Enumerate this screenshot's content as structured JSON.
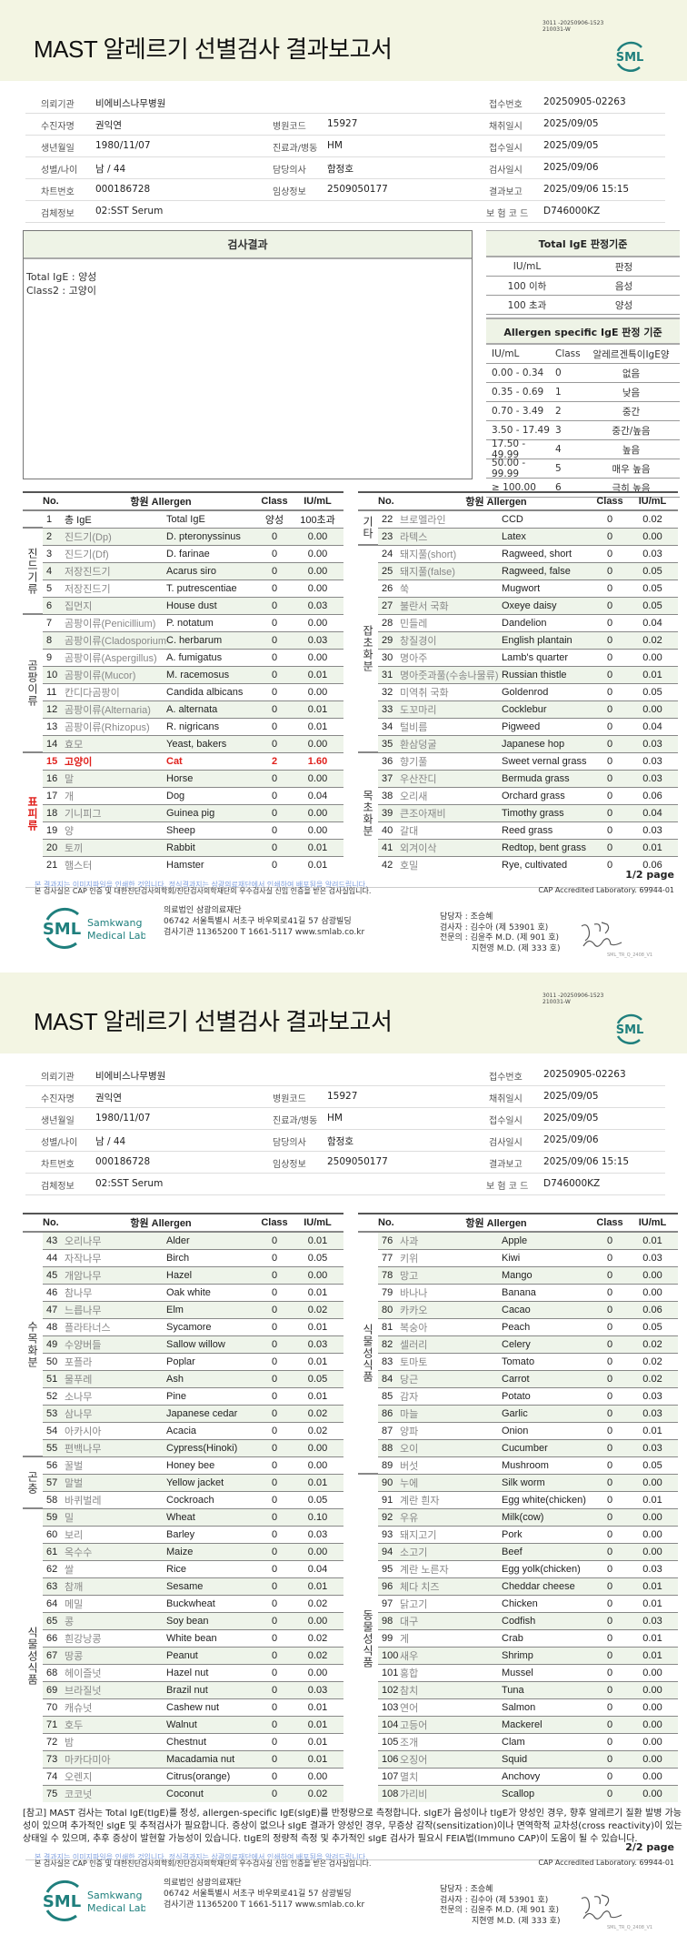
{
  "header": {
    "title": "MAST 알레르기 선별검사 결과보고서",
    "doc_code_1": "3011 -20250906-1523",
    "doc_code_2": "210031-W",
    "logo_text": "SML"
  },
  "info": {
    "institution_label": "의뢰기관",
    "institution": "비에비스나무병원",
    "receipt_no_label": "접수번호",
    "receipt_no": "20250905-02263",
    "patient_label": "수진자명",
    "patient": "권익연",
    "hospital_code_label": "병원코드",
    "hospital_code": "15927",
    "collected_label": "채취일시",
    "collected": "2025/09/05",
    "birth_label": "생년월일",
    "birth": "1980/11/07",
    "dept_label": "진료과/병동",
    "dept": "HM",
    "received_label": "접수일시",
    "received": "2025/09/05",
    "sex_age_label": "성별/나이",
    "sex_age": "남 / 44",
    "doctor_label": "담당의사",
    "doctor": "함정호",
    "tested_label": "검사일시",
    "tested": "2025/09/06",
    "chart_label": "차트번호",
    "chart": "000186728",
    "clinical_label": "임상정보",
    "clinical": "2509050177",
    "reported_label": "결과보고",
    "reported": "2025/09/06 15:15",
    "specimen_label": "검체정보",
    "specimen": "02:SST Serum",
    "insurance_label": "보 험 코 드",
    "insurance": "D746000KZ"
  },
  "result": {
    "title": "검사결과",
    "line1": "Total IgE : 양성",
    "line2": "Class2 : 고양이"
  },
  "total_criteria": {
    "title": "Total IgE 판정기준",
    "headers": [
      "IU/mL",
      "판정"
    ],
    "rows": [
      [
        "100 이하",
        "음성"
      ],
      [
        "100 초과",
        "양성"
      ]
    ]
  },
  "specific_criteria": {
    "title": "Allergen specific IgE 판정 기준",
    "headers": [
      "IU/mL",
      "Class",
      "알레르겐특이IgE양"
    ],
    "rows": [
      [
        "0.00 - 0.34",
        "0",
        "없음"
      ],
      [
        "0.35 - 0.69",
        "1",
        "낮음"
      ],
      [
        "0.70 - 3.49",
        "2",
        "중간"
      ],
      [
        "3.50 - 17.49",
        "3",
        "중간/높음"
      ],
      [
        "17.50 - 49.99",
        "4",
        "높음"
      ],
      [
        "50.00 - 99.99",
        "5",
        "매우 높음"
      ],
      [
        "≥ 100.00",
        "6",
        "극히 높음"
      ]
    ]
  },
  "table_headers": {
    "no": "No.",
    "allergen": "항원 Allergen",
    "class": "Class",
    "iu": "IU/mL"
  },
  "tables": {
    "p1_left": [
      {
        "group": "",
        "rows": [
          [
            "1",
            "총 IgE",
            "Total IgE",
            "양성",
            "100초과"
          ]
        ]
      },
      {
        "group": "진드기류",
        "rows": [
          [
            "2",
            "진드기(Dp)",
            "D. pteronyssinus",
            "0",
            "0.00"
          ],
          [
            "3",
            "진드기(Df)",
            "D. farinae",
            "0",
            "0.00"
          ],
          [
            "4",
            "저장진드기",
            "Acarus siro",
            "0",
            "0.00"
          ],
          [
            "5",
            "저장진드기",
            "T. putrescentiae",
            "0",
            "0.00"
          ],
          [
            "6",
            "집먼지",
            "House dust",
            "0",
            "0.03"
          ]
        ]
      },
      {
        "group": "곰팡이류",
        "rows": [
          [
            "7",
            "곰팡이류(Penicillium)",
            "P. notatum",
            "0",
            "0.00"
          ],
          [
            "8",
            "곰팡이류(Cladosporium)",
            "C. herbarum",
            "0",
            "0.03"
          ],
          [
            "9",
            "곰팡이류(Aspergillus)",
            "A. fumigatus",
            "0",
            "0.00"
          ],
          [
            "10",
            "곰팡이류(Mucor)",
            "M. racemosus",
            "0",
            "0.01"
          ],
          [
            "11",
            "칸디다곰팡이",
            "Candida albicans",
            "0",
            "0.00"
          ],
          [
            "12",
            "곰팡이류(Alternaria)",
            "A. alternata",
            "0",
            "0.01"
          ],
          [
            "13",
            "곰팡이류(Rhizopus)",
            "R. nigricans",
            "0",
            "0.01"
          ],
          [
            "14",
            "효모",
            "Yeast, bakers",
            "0",
            "0.00"
          ]
        ]
      },
      {
        "group": "표피류",
        "rows": [
          [
            "15",
            "고양이",
            "Cat",
            "2",
            "1.60"
          ],
          [
            "16",
            "말",
            "Horse",
            "0",
            "0.00"
          ],
          [
            "17",
            "개",
            "Dog",
            "0",
            "0.04"
          ],
          [
            "18",
            "기니피그",
            "Guinea pig",
            "0",
            "0.00"
          ],
          [
            "19",
            "양",
            "Sheep",
            "0",
            "0.00"
          ],
          [
            "20",
            "토끼",
            "Rabbit",
            "0",
            "0.01"
          ],
          [
            "21",
            "햄스터",
            "Hamster",
            "0",
            "0.01"
          ]
        ]
      }
    ],
    "p1_right": [
      {
        "group": "기타",
        "rows": [
          [
            "22",
            "브로멜라인",
            "CCD",
            "0",
            "0.02"
          ],
          [
            "23",
            "라텍스",
            "Latex",
            "0",
            "0.00"
          ]
        ]
      },
      {
        "group": "잡초화분",
        "rows": [
          [
            "24",
            "돼지풀(short)",
            "Ragweed, short",
            "0",
            "0.03"
          ],
          [
            "25",
            "돼지풀(false)",
            "Ragweed, false",
            "0",
            "0.05"
          ],
          [
            "26",
            "쑥",
            "Mugwort",
            "0",
            "0.05"
          ],
          [
            "27",
            "불란서 국화",
            "Oxeye daisy",
            "0",
            "0.05"
          ],
          [
            "28",
            "민들레",
            "Dandelion",
            "0",
            "0.04"
          ],
          [
            "29",
            "창질경이",
            "English plantain",
            "0",
            "0.02"
          ],
          [
            "30",
            "명아주",
            "Lamb's quarter",
            "0",
            "0.00"
          ],
          [
            "31",
            "명아줏과풀(수송나물류)",
            "Russian thistle",
            "0",
            "0.01"
          ],
          [
            "32",
            "미역취 국화",
            "Goldenrod",
            "0",
            "0.05"
          ],
          [
            "33",
            "도꼬마리",
            "Cocklebur",
            "0",
            "0.00"
          ],
          [
            "34",
            "털비름",
            "Pigweed",
            "0",
            "0.04"
          ],
          [
            "35",
            "환삼덩굴",
            "Japanese hop",
            "0",
            "0.03"
          ]
        ]
      },
      {
        "group": "목초화분",
        "rows": [
          [
            "36",
            "향기풀",
            "Sweet vernal grass",
            "0",
            "0.03"
          ],
          [
            "37",
            "우산잔디",
            "Bermuda grass",
            "0",
            "0.03"
          ],
          [
            "38",
            "오리새",
            "Orchard grass",
            "0",
            "0.06"
          ],
          [
            "39",
            "큰조아재비",
            "Timothy grass",
            "0",
            "0.04"
          ],
          [
            "40",
            "갈대",
            "Reed grass",
            "0",
            "0.03"
          ],
          [
            "41",
            "외겨이삭",
            "Redtop, bent grass",
            "0",
            "0.01"
          ],
          [
            "42",
            "호밀",
            "Rye, cultivated",
            "0",
            "0.06"
          ]
        ]
      }
    ],
    "p2_left": [
      {
        "group": "수목화분",
        "rows": [
          [
            "43",
            "오리나무",
            "Alder",
            "0",
            "0.01"
          ],
          [
            "44",
            "자작나무",
            "Birch",
            "0",
            "0.05"
          ],
          [
            "45",
            "개암나무",
            "Hazel",
            "0",
            "0.00"
          ],
          [
            "46",
            "참나무",
            "Oak white",
            "0",
            "0.01"
          ],
          [
            "47",
            "느릅나무",
            "Elm",
            "0",
            "0.02"
          ],
          [
            "48",
            "플라타너스",
            "Sycamore",
            "0",
            "0.01"
          ],
          [
            "49",
            "수양버들",
            "Sallow willow",
            "0",
            "0.03"
          ],
          [
            "50",
            "포플라",
            "Poplar",
            "0",
            "0.01"
          ],
          [
            "51",
            "물푸레",
            "Ash",
            "0",
            "0.05"
          ],
          [
            "52",
            "소나무",
            "Pine",
            "0",
            "0.01"
          ],
          [
            "53",
            "삼나무",
            "Japanese cedar",
            "0",
            "0.02"
          ],
          [
            "54",
            "아카시아",
            "Acacia",
            "0",
            "0.02"
          ],
          [
            "55",
            "편백나무",
            "Cypress(Hinoki)",
            "0",
            "0.00"
          ]
        ]
      },
      {
        "group": "곤충",
        "rows": [
          [
            "56",
            "꿀벌",
            "Honey bee",
            "0",
            "0.00"
          ],
          [
            "57",
            "말벌",
            "Yellow jacket",
            "0",
            "0.01"
          ],
          [
            "58",
            "바퀴벌레",
            "Cockroach",
            "0",
            "0.05"
          ]
        ]
      },
      {
        "group": "식물성식품",
        "rows": [
          [
            "59",
            "밀",
            "Wheat",
            "0",
            "0.10"
          ],
          [
            "60",
            "보리",
            "Barley",
            "0",
            "0.03"
          ],
          [
            "61",
            "옥수수",
            "Maize",
            "0",
            "0.00"
          ],
          [
            "62",
            "쌀",
            "Rice",
            "0",
            "0.04"
          ],
          [
            "63",
            "참깨",
            "Sesame",
            "0",
            "0.01"
          ],
          [
            "64",
            "메밀",
            "Buckwheat",
            "0",
            "0.02"
          ],
          [
            "65",
            "콩",
            "Soy bean",
            "0",
            "0.00"
          ],
          [
            "66",
            "흰강낭콩",
            "White bean",
            "0",
            "0.02"
          ],
          [
            "67",
            "땅콩",
            "Peanut",
            "0",
            "0.02"
          ],
          [
            "68",
            "헤이즐넛",
            "Hazel nut",
            "0",
            "0.00"
          ],
          [
            "69",
            "브라질넛",
            "Brazil nut",
            "0",
            "0.03"
          ],
          [
            "70",
            "캐슈넛",
            "Cashew nut",
            "0",
            "0.01"
          ],
          [
            "71",
            "호두",
            "Walnut",
            "0",
            "0.01"
          ],
          [
            "72",
            "밤",
            "Chestnut",
            "0",
            "0.01"
          ],
          [
            "73",
            "마카다미아",
            "Macadamia nut",
            "0",
            "0.01"
          ],
          [
            "74",
            "오렌지",
            "Citrus(orange)",
            "0",
            "0.00"
          ],
          [
            "75",
            "코코넛",
            "Coconut",
            "0",
            "0.02"
          ]
        ]
      }
    ],
    "p2_right": [
      {
        "group": "식물성식품",
        "rows": [
          [
            "76",
            "사과",
            "Apple",
            "0",
            "0.01"
          ],
          [
            "77",
            "키위",
            "Kiwi",
            "0",
            "0.03"
          ],
          [
            "78",
            "망고",
            "Mango",
            "0",
            "0.00"
          ],
          [
            "79",
            "바나나",
            "Banana",
            "0",
            "0.00"
          ],
          [
            "80",
            "카카오",
            "Cacao",
            "0",
            "0.06"
          ],
          [
            "81",
            "복숭아",
            "Peach",
            "0",
            "0.05"
          ],
          [
            "82",
            "셀러리",
            "Celery",
            "0",
            "0.02"
          ],
          [
            "83",
            "토마토",
            "Tomato",
            "0",
            "0.02"
          ],
          [
            "84",
            "당근",
            "Carrot",
            "0",
            "0.02"
          ],
          [
            "85",
            "감자",
            "Potato",
            "0",
            "0.03"
          ],
          [
            "86",
            "마늘",
            "Garlic",
            "0",
            "0.03"
          ],
          [
            "87",
            "양파",
            "Onion",
            "0",
            "0.01"
          ],
          [
            "88",
            "오이",
            "Cucumber",
            "0",
            "0.03"
          ],
          [
            "89",
            "버섯",
            "Mushroom",
            "0",
            "0.05"
          ]
        ]
      },
      {
        "group": "동물성식품",
        "rows": [
          [
            "90",
            "누에",
            "Silk worm",
            "0",
            "0.00"
          ],
          [
            "91",
            "계란 흰자",
            "Egg white(chicken)",
            "0",
            "0.01"
          ],
          [
            "92",
            "우유",
            "Milk(cow)",
            "0",
            "0.00"
          ],
          [
            "93",
            "돼지고기",
            "Pork",
            "0",
            "0.00"
          ],
          [
            "94",
            "소고기",
            "Beef",
            "0",
            "0.00"
          ],
          [
            "95",
            "계란 노른자",
            "Egg yolk(chicken)",
            "0",
            "0.03"
          ],
          [
            "96",
            "체다 치즈",
            "Cheddar cheese",
            "0",
            "0.01"
          ],
          [
            "97",
            "닭고기",
            "Chicken",
            "0",
            "0.01"
          ],
          [
            "98",
            "대구",
            "Codfish",
            "0",
            "0.03"
          ],
          [
            "99",
            "게",
            "Crab",
            "0",
            "0.01"
          ],
          [
            "100",
            "새우",
            "Shrimp",
            "0",
            "0.01"
          ],
          [
            "101",
            "홍합",
            "Mussel",
            "0",
            "0.00"
          ],
          [
            "102",
            "참치",
            "Tuna",
            "0",
            "0.00"
          ],
          [
            "103",
            "연어",
            "Salmon",
            "0",
            "0.00"
          ],
          [
            "104",
            "고등어",
            "Mackerel",
            "0",
            "0.00"
          ],
          [
            "105",
            "조개",
            "Clam",
            "0",
            "0.00"
          ],
          [
            "106",
            "오징어",
            "Squid",
            "0",
            "0.00"
          ],
          [
            "107",
            "멸치",
            "Anchovy",
            "0",
            "0.00"
          ],
          [
            "108",
            "가리비",
            "Scallop",
            "0",
            "0.00"
          ]
        ]
      }
    ]
  },
  "highlight_color": "#e0201c",
  "note": "[참고] MAST 검사는 Total IgE(tIgE)를 정성, allergen-specific IgE(sIgE)를 반정량으로 측정합니다. sIgE가 음성이나 tIgE가 양성인 경우, 향후 알레르기 질환 발병 가능성이 있으며 추가적인 sIgE 및 추적검사가 필요합니다. 증상이 없으나 sIgE 결과가 양성인 경우, 무증상 감작(sensitization)이나 면역학적 교차성(cross reactivity)이 있는 상태일 수 있으며, 추후 증상이 발현할 가능성이 있습니다. tIgE의 정량적 측정 및 추가적인 sIgE 검사가 필요시 FEIA법(Immuno CAP)이 도움이 될 수 있습니다.",
  "footer": {
    "page1": "1/2 page",
    "page2": "2/2 page",
    "image_notice": "본 결과지는 이미지파일을 인쇄한 것입니다. 정식결과지는 삼광의료재단에서 인쇄하여 배포됨을 알려드립니다.",
    "cert_notice": "본 검사실은 CAP 인증 및 대한진단검사의학회/진단검사의학재단의 우수검사실 신임 인증을 받은 검사실입니다.",
    "cap": "CAP Accredited Laboratory. 69944-01",
    "logo_name_1": "Samkwang",
    "logo_name_2": "Medical Lab",
    "org_1": "의료법인 삼광의료재단",
    "org_2": "06742 서울특별시 서초구 바우뫼로41길 57 삼광빌딩",
    "org_3": "검사기관 11365200 T 1661-5117 www.smlab.co.kr",
    "staff_1": "담당자 : 조승혜",
    "staff_2": "검사자 : 김수아 (제 53901 호)",
    "staff_3": "전문의 : 김윤주 M.D. (제 901 호)",
    "staff_4": "지현영 M.D. (제 333 호)",
    "form_code": "SML_TR_Q_2408_V1"
  },
  "brand_color": "#1f7f7d"
}
